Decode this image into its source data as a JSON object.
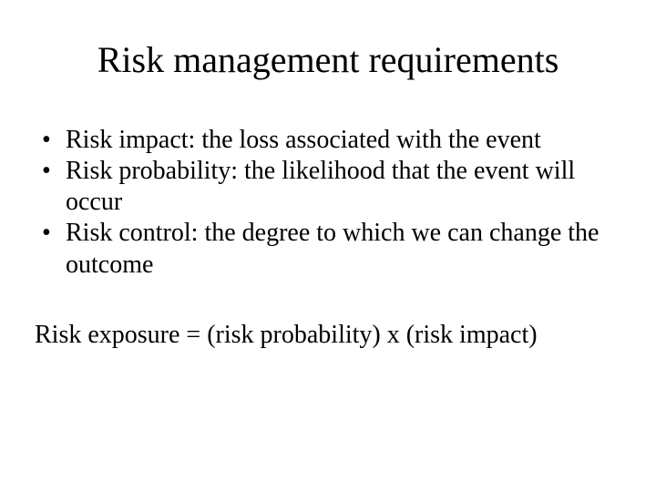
{
  "title": "Risk management requirements",
  "bullets": [
    "Risk impact:  the loss associated with the event",
    "Risk probability:  the likelihood that the event will occur",
    "Risk control:  the degree to which we can change the outcome"
  ],
  "formula": "Risk exposure = (risk probability) x (risk impact)",
  "style": {
    "background_color": "#ffffff",
    "text_color": "#000000",
    "font_family": "Times New Roman",
    "title_fontsize": 40,
    "body_fontsize": 28,
    "bullet_char": "•"
  }
}
